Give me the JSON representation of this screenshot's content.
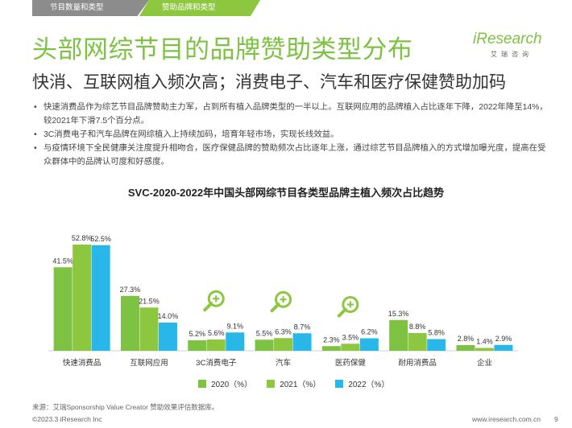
{
  "tabs": [
    {
      "label": "节目数量和类型"
    },
    {
      "label": "赞助品牌和类型"
    }
  ],
  "title": "头部网综节目的品牌赞助类型分布",
  "subtitle": "快消、互联网植入频次高；消费电子、汽车和医疗保健赞助加码",
  "logo": {
    "mark": "iResearch",
    "sub": "艾瑞咨询"
  },
  "bullets": [
    "快速消费品作为综艺节目品牌赞助主力军，占到所有植入品牌类型的一半以上。互联网应用的品牌植入占比逐年下降，2022年降至14%，较2021年下滑7.5个百分点。",
    "3C消费电子和汽车品牌在网综植入上持续加码，培育年轻市场，实现长线效益。",
    "与疫情环境下全民健康关注度提升相吻合，医疗保健品牌的赞助频次占比逐年上涨，通过综艺节目品牌植入的方式增加曝光度，提高在受众群体中的品牌认可度和好感度。"
  ],
  "colors": {
    "accent": "#7dc242",
    "s2020": "#7dc242",
    "s2021": "#8dc63f",
    "s2022": "#29b6e8",
    "zoom_icon": "#8dc63f"
  },
  "chart_data": {
    "type": "bar",
    "title": "SVC-2020-2022年中国头部网综节目各类型品牌主植入频次占比趋势",
    "categories": [
      "快速消费品",
      "互联网应用",
      "3C消费电子",
      "汽车",
      "医药保健",
      "耐用消费品",
      "企业"
    ],
    "series": [
      {
        "name": "2020（%）",
        "values": [
          41.5,
          27.3,
          5.2,
          5.5,
          2.3,
          15.3,
          2.8
        ],
        "labels": [
          "41.5%",
          "27.3%",
          "5.2%",
          "5.5%",
          "2.3%",
          "15.3%",
          "2.8%"
        ]
      },
      {
        "name": "2021（%）",
        "values": [
          52.8,
          21.5,
          5.6,
          6.3,
          3.5,
          8.8,
          1.4
        ],
        "labels": [
          "52.8%",
          "21.5%",
          "5.6%",
          "6.3%",
          "3.5%",
          "8.8%",
          "1.4%"
        ]
      },
      {
        "name": "2022（%）",
        "values": [
          52.5,
          14.0,
          9.1,
          8.7,
          6.2,
          5.8,
          2.9
        ],
        "labels": [
          "52.5%",
          "14.0%",
          "9.1%",
          "8.7%",
          "6.2%",
          "5.8%",
          "2.9%"
        ]
      }
    ],
    "highlight_icons": [
      "3C消费电子",
      "汽车",
      "医药保健"
    ],
    "ylim": [
      0,
      60
    ],
    "grid": false,
    "legend": "bottom"
  },
  "source": "来源：艾瑞Sponsorship Value Creator 赞助效果评估数据库。",
  "footer_left": "©2023.3 iResearch Inc",
  "footer_right": "www.iresearch.com.cn",
  "page_number": "9"
}
